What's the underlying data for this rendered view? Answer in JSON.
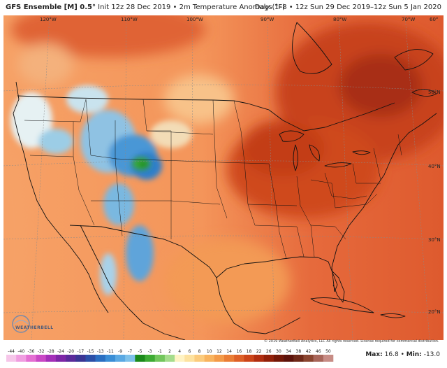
{
  "header": {
    "model": "GFS Ensemble [M] 0.5°",
    "init": "Init 12z 28 Dec 2019",
    "field": "2m Temperature Anomaly (°F)",
    "valid": "Days 1–8 • 12z Sun 29 Dec 2019–12z Sun 5 Jan 2020"
  },
  "longitude_labels": [
    "120°W",
    "110°W",
    "100°W",
    "90°W",
    "80°W",
    "70°W",
    "60°"
  ],
  "latitude_labels": [
    "50°N",
    "40°N",
    "30°N",
    "20°N"
  ],
  "logo": {
    "name": "weatherbell-logo",
    "text": "WEATHERBELL"
  },
  "copyright": "© 2019 WeatherBell Analytics, LLC All rights reserved. License required for commercial distribution.",
  "stats": {
    "max_label": "Max:",
    "max_value": "16.8",
    "min_label": "Min:",
    "min_value": "-13.0"
  },
  "colorbar": {
    "ticks": [
      "-44",
      "-40",
      "-36",
      "-32",
      "-28",
      "-24",
      "-20",
      "-17",
      "-15",
      "-13",
      "-11",
      "-9",
      "-7",
      "-5",
      "-3",
      "-1",
      "2",
      "4",
      "6",
      "8",
      "10",
      "12",
      "14",
      "16",
      "18",
      "22",
      "26",
      "30",
      "34",
      "38",
      "42",
      "46",
      "50"
    ],
    "colors": [
      "#f6c6e9",
      "#f09de0",
      "#e46fd2",
      "#c948c5",
      "#a32fb8",
      "#7d26a6",
      "#5a2a9a",
      "#3a3594",
      "#2b4fa8",
      "#2a6fc2",
      "#3a8ed6",
      "#5aa9e3",
      "#7dc1ea",
      "#1a8a1a",
      "#3dab33",
      "#72c65c",
      "#a5dc8c",
      "#fff3c4",
      "#fde2a0",
      "#fbcb7d",
      "#f8b35e",
      "#f39a48",
      "#ea7d35",
      "#de6027",
      "#cc4519",
      "#b12e10",
      "#922009",
      "#731707",
      "#5c120a",
      "#6e2818",
      "#8a4530",
      "#a8665a",
      "#c78c85"
    ]
  }
}
